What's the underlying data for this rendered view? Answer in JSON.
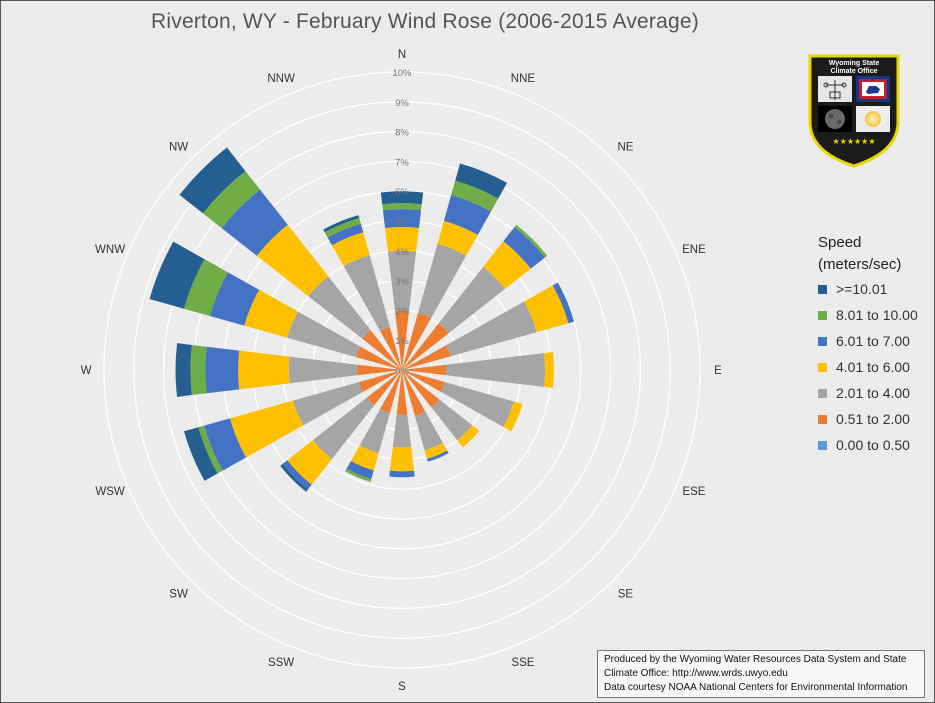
{
  "chart_data": {
    "type": "wind-rose",
    "title": "Riverton, WY - February Wind Rose (2006-2015 Average)",
    "directions": [
      "N",
      "NNE",
      "NE",
      "ENE",
      "E",
      "ESE",
      "SE",
      "SSE",
      "S",
      "SSW",
      "SW",
      "WSW",
      "W",
      "WNW",
      "NW",
      "NNW"
    ],
    "radial_ticks": [
      "0%",
      "1%",
      "2%",
      "3%",
      "4%",
      "5%",
      "6%",
      "7%",
      "8%",
      "9%",
      "10%"
    ],
    "radial_max": 10,
    "legend_title_line1": "Speed",
    "legend_title_line2": "(meters/sec)",
    "series": [
      {
        "name": "0.00 to 0.50",
        "color": "#5b9bd5"
      },
      {
        "name": "0.51 to 2.00",
        "color": "#ed7d31"
      },
      {
        "name": "2.01 to 4.00",
        "color": "#a5a5a5"
      },
      {
        "name": "4.01 to 6.00",
        "color": "#ffc000"
      },
      {
        "name": "6.01 to 7.00",
        "color": "#4472c4"
      },
      {
        "name": "8.01 to 10.00",
        "color": "#70ad47"
      },
      {
        "name": ">=10.01",
        "color": "#255e91"
      }
    ],
    "cumulative": {
      "N": [
        0.0,
        2.0,
        4.0,
        4.8,
        5.4,
        5.6,
        6.0
      ],
      "NNE": [
        0.0,
        2.0,
        4.4,
        5.2,
        6.1,
        6.6,
        7.2
      ],
      "NE": [
        0.0,
        2.0,
        4.4,
        5.5,
        6.1,
        6.2,
        6.2
      ],
      "ENE": [
        0.0,
        1.7,
        4.7,
        5.8,
        6.0,
        6.0,
        6.0
      ],
      "E": [
        0.0,
        1.5,
        4.8,
        5.1,
        5.1,
        5.1,
        5.1
      ],
      "ESE": [
        0.0,
        1.5,
        3.9,
        4.2,
        4.2,
        4.2,
        4.2
      ],
      "SE": [
        0.0,
        1.6,
        3.0,
        3.3,
        3.3,
        3.3,
        3.3
      ],
      "SSE": [
        0.0,
        1.6,
        2.8,
        3.1,
        3.2,
        3.2,
        3.2
      ],
      "S": [
        0.0,
        1.5,
        2.6,
        3.4,
        3.6,
        3.6,
        3.6
      ],
      "SSW": [
        0.0,
        1.5,
        2.9,
        3.5,
        3.8,
        3.9,
        3.9
      ],
      "SW": [
        0.0,
        1.5,
        3.8,
        4.9,
        5.1,
        5.1,
        5.2
      ],
      "WSW": [
        0.0,
        1.5,
        3.8,
        6.0,
        6.9,
        7.1,
        7.6
      ],
      "W": [
        0.0,
        1.5,
        3.8,
        5.5,
        6.6,
        7.1,
        7.6
      ],
      "WNW": [
        0.0,
        1.6,
        4.0,
        5.5,
        6.7,
        7.6,
        8.8
      ],
      "NW": [
        0.0,
        1.7,
        4.0,
        6.2,
        7.7,
        8.5,
        9.5
      ],
      "NNW": [
        0.0,
        1.5,
        4.0,
        4.8,
        5.1,
        5.3,
        5.4
      ]
    }
  },
  "logo": {
    "line1": "Wyoming State",
    "line2": "Climate Office",
    "stars": "★★★★★★"
  },
  "credit": {
    "line1": "Produced by the Wyoming Water Resources Data System and State",
    "line2": "Climate Office: http://www.wrds.uwyo.edu",
    "line3": "Data courtesy NOAA National Centers for Environmental Information"
  }
}
